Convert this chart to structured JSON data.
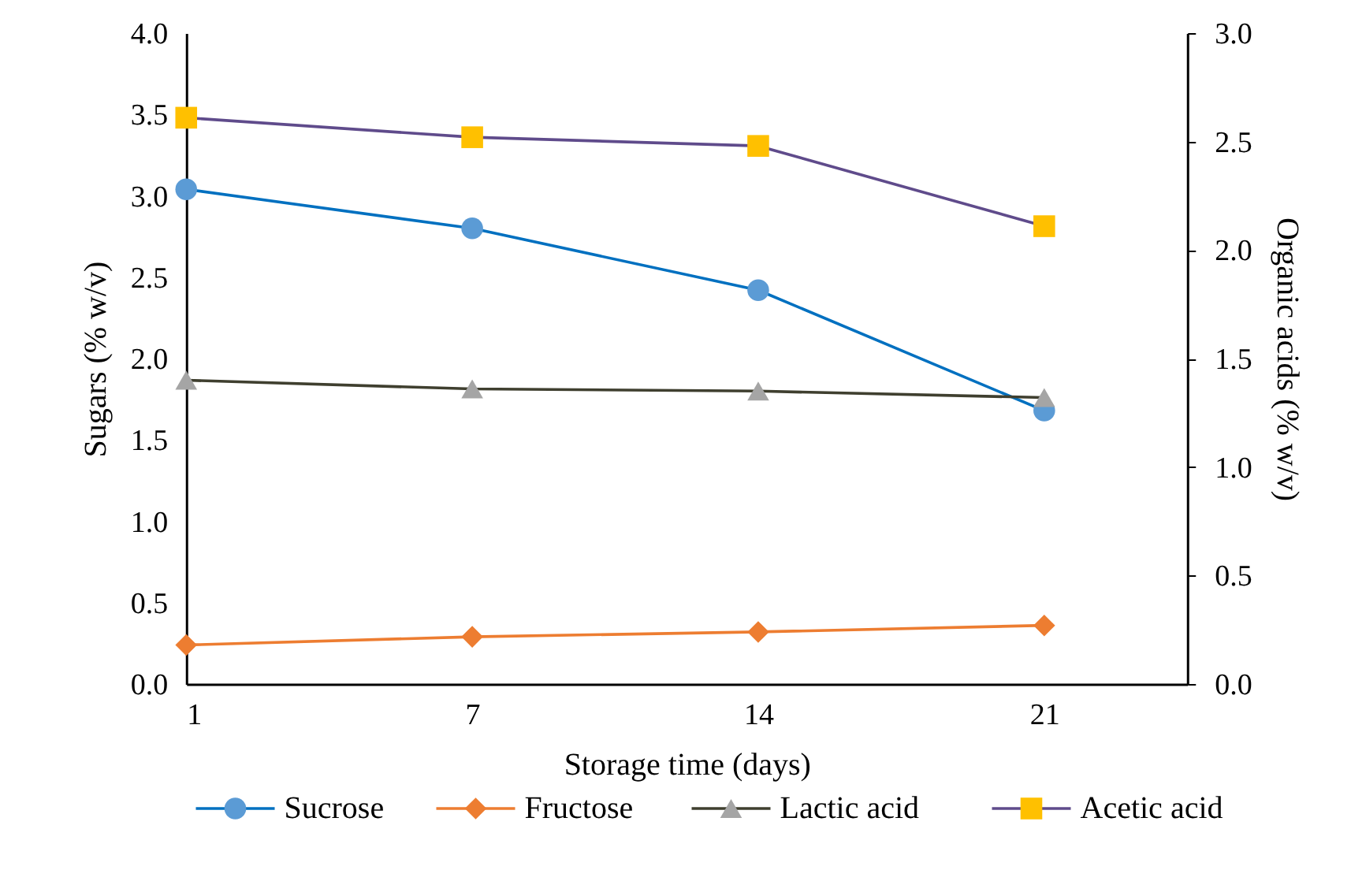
{
  "chart_data": {
    "type": "line",
    "xlabel": "Storage time (days)",
    "ylabel": "Sugars (% w/v)",
    "y2label": "Organic acids (% w/v)",
    "categories": [
      "1",
      "7",
      "14",
      "21"
    ],
    "ylim": [
      0,
      4
    ],
    "yticks": [
      {
        "value": 0,
        "label": "0.0"
      },
      0.5,
      {
        "value": 1,
        "label": "1.0"
      },
      1.5,
      {
        "value": 2,
        "label": "2.0"
      },
      2.5,
      {
        "value": 3,
        "label": "3.0"
      },
      3.5,
      {
        "value": 4,
        "label": "4.0"
      }
    ],
    "y2lim": [
      0,
      3
    ],
    "y2ticks": [
      {
        "value": 0,
        "label": "0.0"
      },
      0.5,
      {
        "value": 1,
        "label": "1.0"
      },
      1.5,
      {
        "value": 2,
        "label": "2.0"
      },
      2.5,
      {
        "value": 3,
        "label": "3.0"
      }
    ],
    "grid": false,
    "legend": "bottom",
    "line_style": "solid",
    "series": [
      {
        "name": "Sucrose",
        "color": "#0070c0",
        "colors": [
          "#5b9bd5",
          "#5b9bd5",
          "#5b9bd5",
          "#5b9bd5"
        ],
        "marker": "circle",
        "values": [
          3.04,
          2.8,
          2.42,
          1.68
        ]
      },
      {
        "name": "Fructose",
        "color": "#ed7d31",
        "colors": [
          "#ed7d31",
          "#ed7d31",
          "#ed7d31",
          "#ed7d31"
        ],
        "marker": "diamond",
        "values": [
          0.24,
          0.29,
          0.32,
          0.36
        ]
      },
      {
        "name": "Lactic acid",
        "color": "#3f3f2f",
        "colors": [
          "#a5a5a5",
          "#a5a5a5",
          "#a5a5a5",
          "#a5a5a5"
        ],
        "marker": "triangle",
        "axis": "y2",
        "values": [
          1.4,
          1.36,
          1.35,
          1.32
        ]
      },
      {
        "name": "Acetic acid",
        "color": "#5f4b8b",
        "colors": [
          "#ffc000",
          "#ffc000",
          "#ffc000",
          "#ffc000"
        ],
        "marker": "square",
        "axis": "y2",
        "values": [
          2.61,
          2.52,
          2.48,
          2.11
        ]
      }
    ]
  }
}
